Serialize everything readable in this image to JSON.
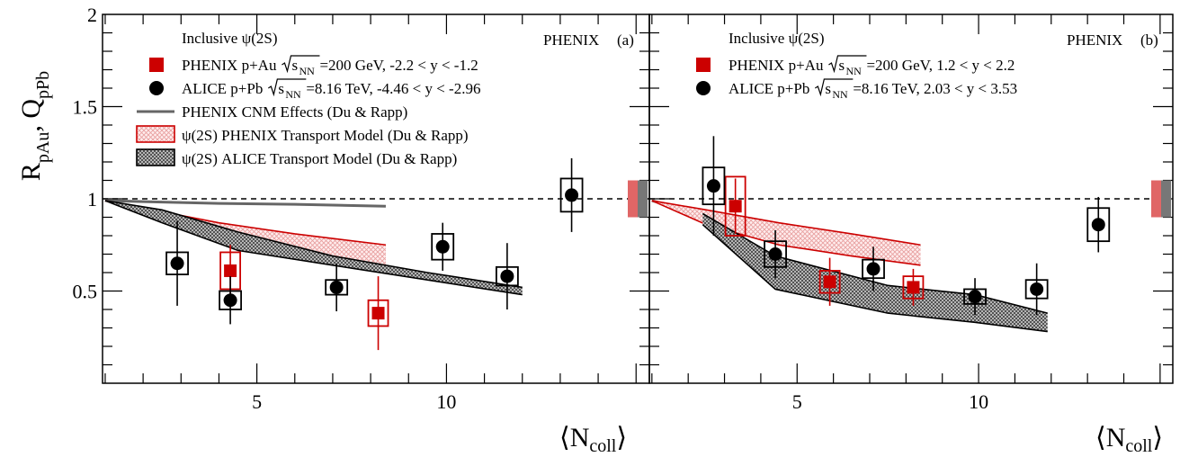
{
  "figure": {
    "ylabel": "R",
    "ylabel_sub1": "pAu",
    "ylabel_sep": ", Q",
    "ylabel_sub2": "pPb",
    "xlabel_left": "⟨N",
    "xlabel_sub": "coll",
    "xlabel_right": "⟩"
  },
  "chart_data": [
    {
      "type": "scatter",
      "panel_label": "(a)",
      "experiment_label": "PHENIX",
      "legend_title": "Inclusive ψ(2S)",
      "legend_placement": "top-left",
      "xlim": [
        0.93,
        15.35
      ],
      "ylim": [
        0.0,
        2.0
      ],
      "x_ticks": [
        5,
        10
      ],
      "y_ticks": [
        0.5,
        1,
        1.5,
        2
      ],
      "reference_line": 1,
      "series": [
        {
          "name": "PHENIX p+Au",
          "label_tail": "=200 GeV, -2.2 < y < -1.2",
          "marker": "square",
          "color": "#cc0000",
          "x": [
            4.3,
            8.2
          ],
          "y": [
            0.61,
            0.38
          ],
          "stat_err": [
            0.14,
            0.2
          ],
          "syst_err": [
            0.1,
            0.07
          ]
        },
        {
          "name": "ALICE p+Pb",
          "label_tail": "=8.16 TeV, -4.46 < y < -2.96",
          "marker": "circle",
          "color": "#000000",
          "x": [
            2.9,
            4.3,
            7.1,
            9.9,
            11.6,
            13.3
          ],
          "y": [
            0.65,
            0.45,
            0.52,
            0.74,
            0.58,
            1.02
          ],
          "stat_err": [
            0.23,
            0.13,
            0.13,
            0.13,
            0.18,
            0.2
          ],
          "syst_err": [
            0.06,
            0.05,
            0.04,
            0.07,
            0.05,
            0.09
          ]
        }
      ],
      "models": [
        {
          "name": "PHENIX CNM Effects (Du & Rapp)",
          "type": "line",
          "color": "#666666",
          "x": [
            1.0,
            2.0,
            4.0,
            6.0,
            8.4
          ],
          "y": [
            0.99,
            0.985,
            0.975,
            0.97,
            0.96
          ]
        },
        {
          "name": "ψ(2S) PHENIX Transport Model (Du & Rapp)",
          "type": "band",
          "color": "#cc0000",
          "x": [
            1.0,
            2.0,
            4.0,
            6.0,
            8.4
          ],
          "upper": [
            0.99,
            0.95,
            0.87,
            0.81,
            0.75
          ],
          "lower": [
            0.99,
            0.92,
            0.77,
            0.68,
            0.61
          ]
        },
        {
          "name": "ψ(2S) ALICE Transport Model (Du & Rapp)",
          "type": "band",
          "color": "#555555",
          "x": [
            1.0,
            2.5,
            4.5,
            7.0,
            9.5,
            12.0
          ],
          "upper": [
            0.99,
            0.94,
            0.82,
            0.69,
            0.6,
            0.52
          ],
          "lower": [
            0.99,
            0.87,
            0.72,
            0.64,
            0.56,
            0.48
          ]
        }
      ],
      "global_uncertainty": [
        {
          "color": "#e06666",
          "low": 0.9,
          "high": 1.1
        },
        {
          "color": "#777777",
          "low": 0.9,
          "high": 1.1
        }
      ]
    },
    {
      "type": "scatter",
      "panel_label": "(b)",
      "experiment_label": "PHENIX",
      "legend_title": "Inclusive ψ(2S)",
      "legend_placement": "top-left",
      "xlim": [
        0.93,
        15.35
      ],
      "ylim": [
        0.0,
        2.0
      ],
      "x_ticks": [
        5,
        10
      ],
      "y_ticks": [
        0.5,
        1,
        1.5,
        2
      ],
      "reference_line": 1,
      "series": [
        {
          "name": "PHENIX p+Au",
          "label_tail": "=200 GeV, 1.2 < y < 2.2",
          "marker": "square",
          "color": "#cc0000",
          "x": [
            3.3,
            5.9,
            8.2
          ],
          "y": [
            0.96,
            0.55,
            0.52
          ],
          "stat_err": [
            0.15,
            0.13,
            0.1
          ],
          "syst_err": [
            0.16,
            0.06,
            0.06
          ]
        },
        {
          "name": "ALICE p+Pb",
          "label_tail": "=8.16 TeV, 2.03 < y < 3.53",
          "marker": "circle",
          "color": "#000000",
          "x": [
            2.7,
            4.4,
            7.1,
            9.9,
            11.6,
            13.3
          ],
          "y": [
            1.07,
            0.7,
            0.62,
            0.47,
            0.51,
            0.86
          ],
          "stat_err": [
            0.27,
            0.13,
            0.12,
            0.1,
            0.14,
            0.15
          ],
          "syst_err": [
            0.1,
            0.07,
            0.05,
            0.04,
            0.05,
            0.09
          ]
        }
      ],
      "models": [
        {
          "name": "PHENIX CNM Effects (Du & Rapp)",
          "type": "line",
          "color": "#666666",
          "x": [
            1.0,
            2.5,
            4.5,
            6.5,
            8.4
          ],
          "y": [
            0.99,
            0.91,
            0.84,
            0.79,
            0.74
          ]
        },
        {
          "name": "ψ(2S) PHENIX Transport Model (Du & Rapp)",
          "type": "band",
          "color": "#cc0000",
          "x": [
            1.0,
            2.5,
            4.5,
            6.5,
            8.4
          ],
          "upper": [
            0.99,
            0.94,
            0.87,
            0.81,
            0.75
          ],
          "lower": [
            0.99,
            0.86,
            0.75,
            0.69,
            0.64
          ]
        },
        {
          "name": "ψ(2S) ALICE Transport Model (Du & Rapp)",
          "type": "band",
          "color": "#555555",
          "x": [
            2.4,
            4.4,
            7.5,
            9.9,
            11.9
          ],
          "upper": [
            0.92,
            0.69,
            0.53,
            0.48,
            0.38
          ],
          "lower": [
            0.86,
            0.51,
            0.38,
            0.33,
            0.28
          ]
        }
      ],
      "global_uncertainty": [
        {
          "color": "#e06666",
          "low": 0.9,
          "high": 1.1
        },
        {
          "color": "#777777",
          "low": 0.9,
          "high": 1.1
        }
      ]
    }
  ]
}
